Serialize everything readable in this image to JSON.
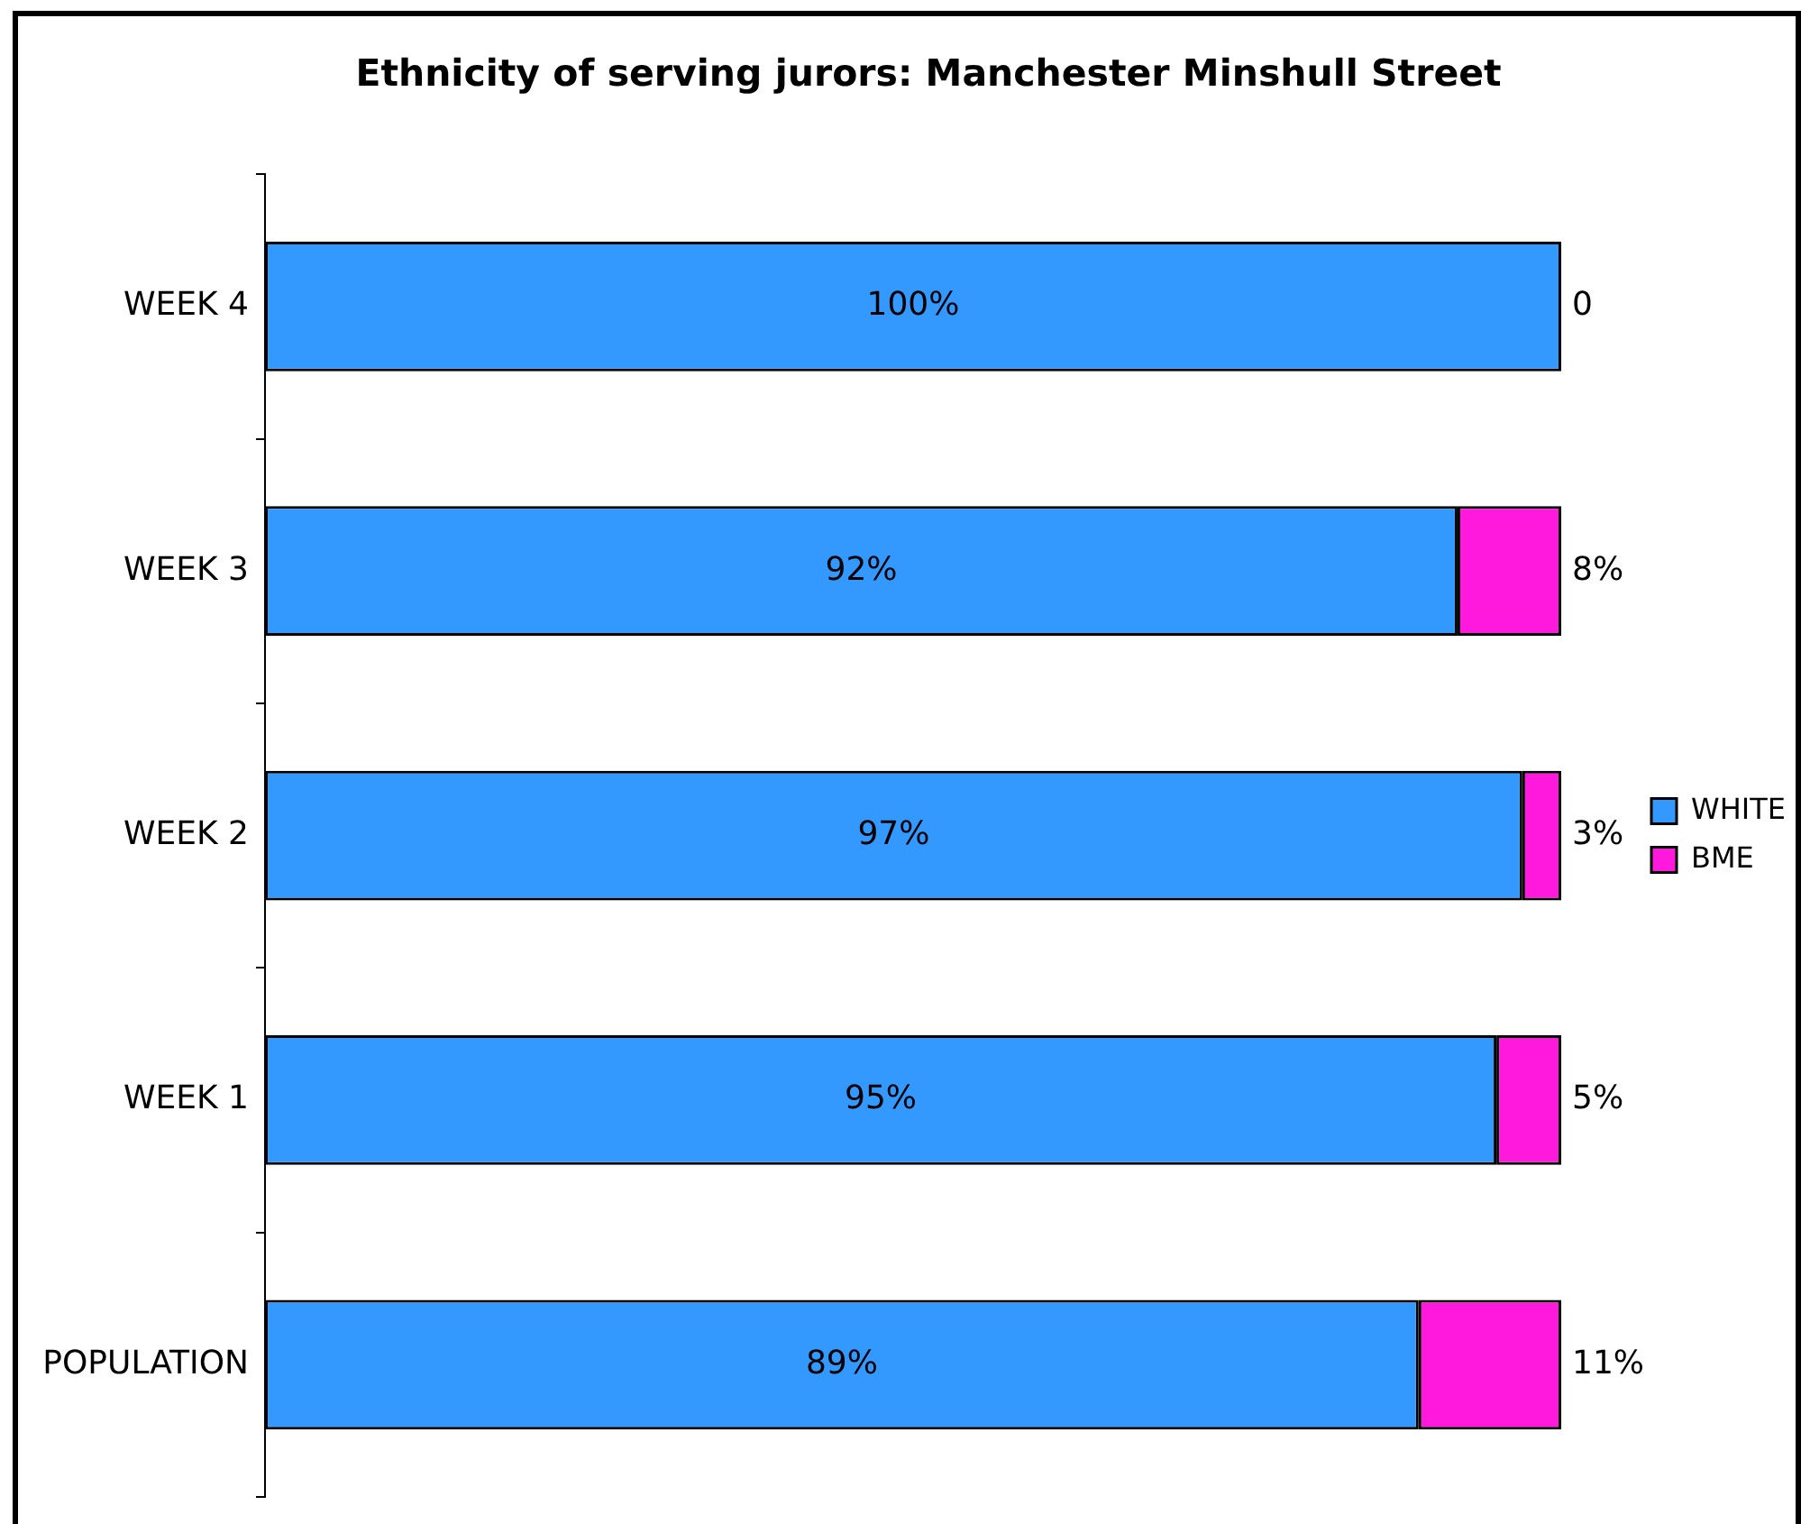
{
  "chart_data": {
    "type": "bar",
    "orientation": "horizontal",
    "stacked": true,
    "title": "Ethnicity of serving jurors: Manchester Minshull Street",
    "categories": [
      "WEEK 4",
      "WEEK 3",
      "WEEK 2",
      "WEEK 1",
      "POPULATION"
    ],
    "series": [
      {
        "name": "WHITE",
        "color": "#3399ff",
        "values": [
          100,
          92,
          97,
          95,
          89
        ],
        "value_labels": [
          "100%",
          "92%",
          "97%",
          "95%",
          "89%"
        ]
      },
      {
        "name": "BME",
        "color": "#ff19dc",
        "values": [
          0,
          8,
          3,
          5,
          11
        ],
        "value_labels": [
          "0",
          "8%",
          "3%",
          "5%",
          "11%"
        ]
      }
    ],
    "xlim": [
      0,
      100
    ],
    "tick_labels": "y",
    "legend": "right"
  }
}
